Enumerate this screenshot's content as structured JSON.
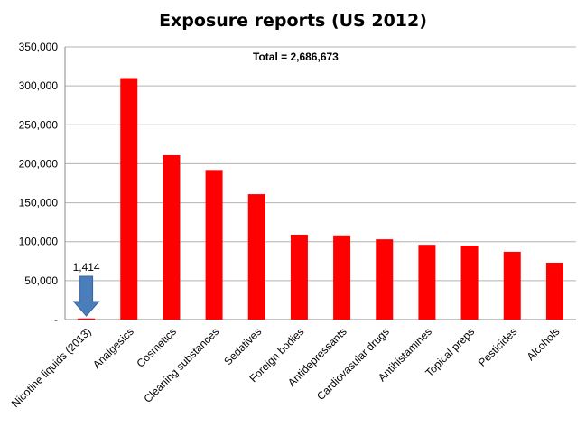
{
  "chart_data": {
    "type": "bar",
    "title": "Exposure reports (US 2012)",
    "annotation": "Total =  2,686,673",
    "xlabel": "",
    "ylabel": "",
    "ylim": [
      0,
      350000
    ],
    "yticks": [
      0,
      50000,
      100000,
      150000,
      200000,
      250000,
      300000,
      350000
    ],
    "ytick_labels": [
      "-",
      "50,000",
      "100,000",
      "150,000",
      "200,000",
      "250,000",
      "300,000",
      "350,000"
    ],
    "grid": true,
    "legend": "none",
    "categories": [
      "Nicotine liquids (2013)",
      "Analgesics",
      "Cosmetics",
      "Cleaning substances",
      "Sedatives",
      "Foreign bodies",
      "Antidepressants",
      "Cardiovasular drugs",
      "Antihistamines",
      "Topical preps",
      "Pesticides",
      "Alcohols"
    ],
    "values": [
      1414,
      310000,
      211000,
      192000,
      161000,
      109000,
      108000,
      103000,
      96000,
      95000,
      87000,
      73000
    ],
    "data_labels": [
      {
        "index": 0,
        "text": "1,414"
      }
    ],
    "highlight": {
      "index": 0,
      "marker": "down-arrow"
    },
    "colors": {
      "bar": "#ff0000",
      "arrow": "#4a7ebb",
      "grid": "#b3b3b3",
      "axis": "#888888"
    }
  }
}
